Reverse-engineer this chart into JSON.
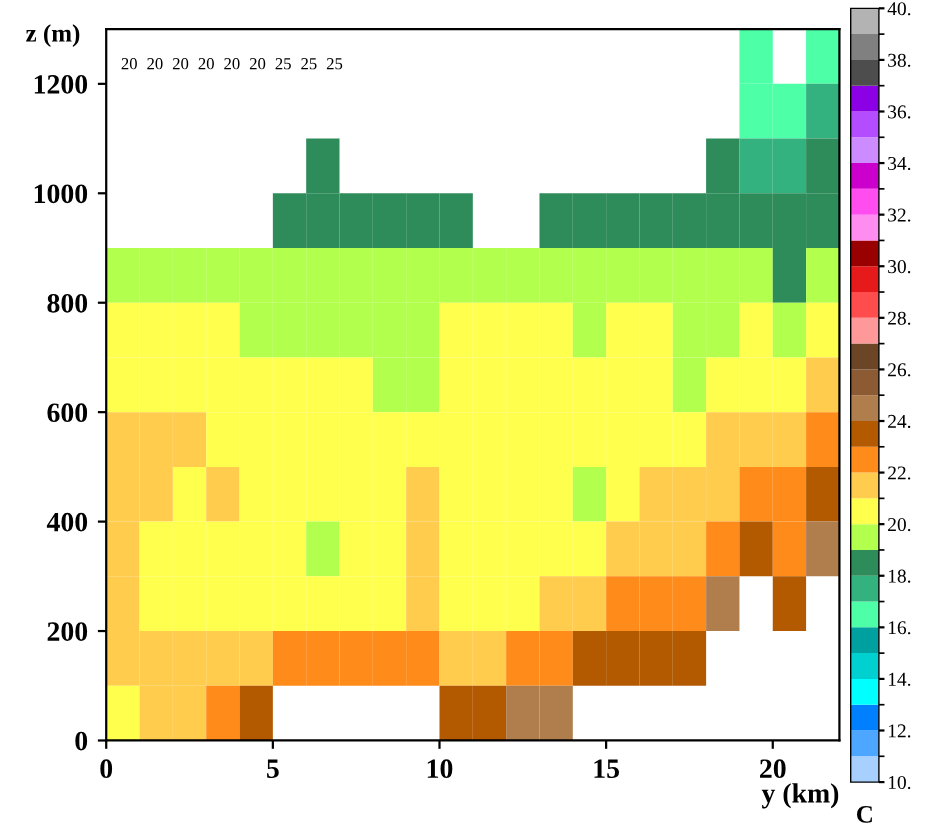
{
  "chart_data": {
    "type": "heatmap",
    "xlabel": "y (km)",
    "ylabel": "z (m)",
    "clabel": "C",
    "x": [
      0.5,
      1.5,
      2.5,
      3.5,
      4.5,
      5.5,
      6.5,
      7.5,
      8.5,
      9.5,
      10.5,
      11.5,
      12.5,
      13.5,
      14.5,
      15.5,
      16.5,
      17.5,
      18.5,
      19.5,
      20.5,
      21.5
    ],
    "y": [
      1250,
      1150,
      1050,
      950,
      850,
      750,
      650,
      550,
      450,
      350,
      250,
      150,
      50
    ],
    "cells": [
      [
        null,
        null,
        null,
        null,
        null,
        null,
        null,
        null,
        null,
        null,
        null,
        null,
        null,
        null,
        null,
        null,
        null,
        null,
        null,
        16.5,
        null,
        16.5
      ],
      [
        null,
        null,
        null,
        null,
        null,
        null,
        null,
        null,
        null,
        null,
        null,
        null,
        null,
        null,
        null,
        null,
        null,
        null,
        null,
        16.5,
        16.5,
        17.5
      ],
      [
        null,
        null,
        null,
        null,
        null,
        null,
        18.5,
        null,
        null,
        null,
        null,
        null,
        null,
        null,
        null,
        null,
        null,
        null,
        18.5,
        17.5,
        17.5,
        18.5
      ],
      [
        null,
        null,
        null,
        null,
        null,
        18.5,
        18.5,
        18.5,
        18.5,
        18.5,
        18.5,
        null,
        null,
        18.5,
        18.5,
        18.5,
        18.5,
        18.5,
        18.5,
        18.5,
        18.5,
        18.5
      ],
      [
        19.5,
        19.5,
        19.5,
        19.5,
        19.5,
        19.5,
        19.5,
        19.5,
        19.5,
        19.5,
        19.5,
        19.5,
        19.5,
        19.5,
        19.5,
        19.5,
        19.5,
        19.5,
        19.5,
        19.5,
        18.5,
        19.5
      ],
      [
        20.5,
        20.5,
        20.5,
        20.5,
        19.5,
        19.5,
        19.5,
        19.5,
        19.5,
        19.5,
        20.5,
        20.5,
        20.5,
        20.5,
        19.5,
        20.5,
        20.5,
        19.5,
        19.5,
        20.5,
        19.5,
        20.5
      ],
      [
        20.5,
        20.5,
        20.5,
        20.5,
        20.5,
        20.5,
        20.5,
        20.5,
        19.5,
        19.5,
        20.5,
        20.5,
        20.5,
        20.5,
        20.5,
        20.5,
        20.5,
        19.5,
        20.5,
        20.5,
        20.5,
        21.5
      ],
      [
        21.5,
        21.5,
        21.5,
        20.5,
        20.5,
        20.5,
        20.5,
        20.5,
        20.5,
        20.5,
        20.5,
        20.5,
        20.5,
        20.5,
        20.5,
        20.5,
        20.5,
        20.5,
        21.5,
        21.5,
        21.5,
        22.5
      ],
      [
        21.5,
        21.5,
        20.5,
        21.5,
        20.5,
        20.5,
        20.5,
        20.5,
        20.5,
        21.5,
        20.5,
        20.5,
        20.5,
        20.5,
        19.5,
        20.5,
        21.5,
        21.5,
        21.5,
        22.5,
        22.5,
        23.5
      ],
      [
        21.5,
        20.5,
        20.5,
        20.5,
        20.5,
        20.5,
        19.5,
        20.5,
        20.5,
        21.5,
        20.5,
        20.5,
        20.5,
        20.5,
        20.5,
        21.5,
        21.5,
        21.5,
        22.5,
        23.5,
        22.5,
        24.5
      ],
      [
        21.5,
        20.5,
        20.5,
        20.5,
        20.5,
        20.5,
        20.5,
        20.5,
        20.5,
        21.5,
        20.5,
        20.5,
        20.5,
        21.5,
        21.5,
        22.5,
        22.5,
        22.5,
        24.5,
        null,
        23.5,
        null
      ],
      [
        21.5,
        21.5,
        21.5,
        21.5,
        21.5,
        22.5,
        22.5,
        22.5,
        22.5,
        22.5,
        21.5,
        21.5,
        22.5,
        22.5,
        23.5,
        23.5,
        23.5,
        23.5,
        null,
        null,
        null,
        null
      ],
      [
        20.5,
        21.5,
        21.5,
        22.5,
        23.5,
        null,
        null,
        null,
        null,
        null,
        23.5,
        23.5,
        24.5,
        24.5,
        null,
        null,
        null,
        null,
        null,
        null,
        null,
        null
      ]
    ],
    "colors": [
      "#a8d0ff",
      "#4da6ff",
      "#0080ff",
      "#00ffff",
      "#00d0d0",
      "#00a0a0",
      "#4dffa6",
      "#33b27f",
      "#2e8b5a",
      "#b3ff4d",
      "#ffff4d",
      "#ffcc4d",
      "#ff8c1a",
      "#b35900",
      "#b07d4d",
      "#8c5a33",
      "#6b4526",
      "#ff9999",
      "#ff4d4d",
      "#e61a1a",
      "#990000",
      "#ff8cf0",
      "#ff4df0",
      "#cc00cc",
      "#cc8cff",
      "#b34dff",
      "#8c00e6",
      "#4d4d4d",
      "#808080",
      "#b3b3b3"
    ],
    "clim": [
      10,
      40
    ],
    "cticks": [
      {
        "value": 10,
        "label": "10."
      },
      {
        "value": 12,
        "label": "12."
      },
      {
        "value": 14,
        "label": "14."
      },
      {
        "value": 16,
        "label": "16."
      },
      {
        "value": 18,
        "label": "18."
      },
      {
        "value": 20,
        "label": "20."
      },
      {
        "value": 22,
        "label": "22."
      },
      {
        "value": 24,
        "label": "24."
      },
      {
        "value": 26,
        "label": "26."
      },
      {
        "value": 28,
        "label": "28."
      },
      {
        "value": 30,
        "label": "30."
      },
      {
        "value": 32,
        "label": "32."
      },
      {
        "value": 34,
        "label": "34."
      },
      {
        "value": 36,
        "label": "36."
      },
      {
        "value": 38,
        "label": "38."
      },
      {
        "value": 40,
        "label": "40."
      }
    ],
    "xlim": [
      0,
      22
    ],
    "ylim": [
      0,
      1300
    ],
    "xticks": [
      0,
      5,
      10,
      15,
      20
    ],
    "yticks": [
      0,
      200,
      400,
      600,
      800,
      1000,
      1200
    ],
    "annotations": [
      "20",
      "20",
      "20",
      "20",
      "20",
      "20",
      "25",
      "25",
      "25"
    ]
  }
}
